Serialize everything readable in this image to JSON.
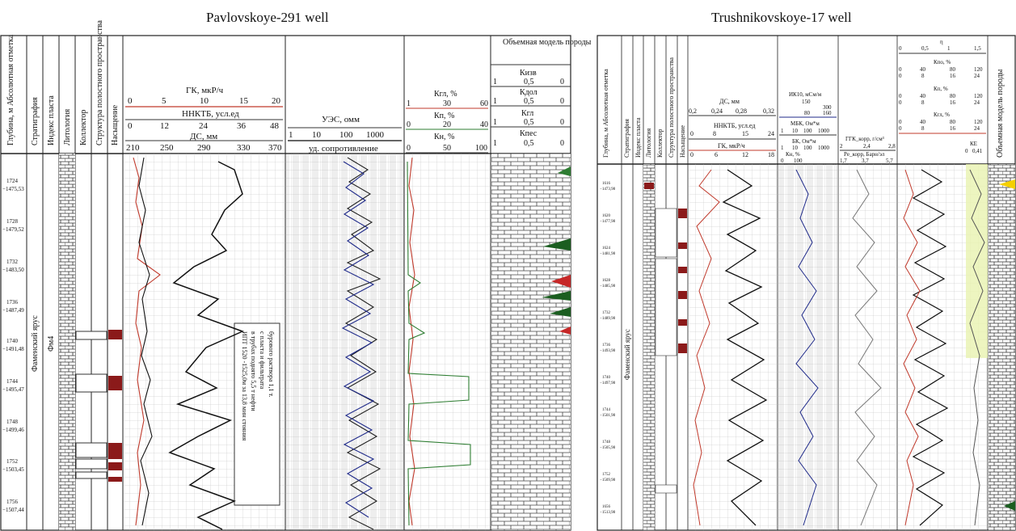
{
  "left": {
    "title": "Pavlovskoye-291 well",
    "vertical_headers": [
      "Глубина, м Абсолютная отметка",
      "Стратиграфия",
      "Индекс пласта",
      "Литология",
      "Коллектор",
      "Структура полостного пространства",
      "Насыщение"
    ],
    "gk": {
      "label": "ГК, мкР/ч",
      "ticks": [
        "0",
        "5",
        "10",
        "15",
        "20"
      ]
    },
    "nnktb": {
      "label": "ННКТБ, усл.ед",
      "ticks": [
        "0",
        "12",
        "24",
        "36",
        "48"
      ]
    },
    "ds": {
      "label": "ДС, мм",
      "ticks": [
        "210",
        "250",
        "290",
        "330",
        "370"
      ]
    },
    "ues": {
      "label": "УЭС, омм",
      "ticks": [
        "1",
        "10",
        "100",
        "1000"
      ],
      "footer": "уд. сопротивление"
    },
    "kgl": {
      "label": "Кгл, %",
      "ticks": [
        "1",
        "30",
        "60"
      ]
    },
    "kp": {
      "label": "Кп, %",
      "ticks": [
        "0",
        "20",
        "40"
      ]
    },
    "kn": {
      "label": "Кн, %",
      "ticks": [
        "0",
        "50",
        "100"
      ]
    },
    "volume_model": {
      "title": "Объемная модель породы",
      "rows": [
        {
          "label": "Кизв",
          "ticks": [
            "1",
            "0,5",
            "0"
          ]
        },
        {
          "label": "Кдол",
          "ticks": [
            "1",
            "0,5",
            "0"
          ]
        },
        {
          "label": "Кгл",
          "ticks": [
            "1",
            "0,5",
            "0"
          ]
        },
        {
          "label": "Кпес",
          "ticks": [
            "1",
            "0,5",
            "0"
          ]
        }
      ]
    },
    "depths": [
      {
        "d": "1724",
        "a": "−1475,53"
      },
      {
        "d": "1728",
        "a": "−1479,52"
      },
      {
        "d": "1732",
        "a": "−1483,50"
      },
      {
        "d": "1736",
        "a": "−1487,49"
      },
      {
        "d": "1740",
        "a": "−1491,48"
      },
      {
        "d": "1744",
        "a": "−1495,47"
      },
      {
        "d": "1748",
        "a": "−1499,46"
      },
      {
        "d": "1752",
        "a": "−1503,45"
      },
      {
        "d": "1756",
        "a": "−1507,44"
      }
    ],
    "strat": "Фаменский ярус",
    "index": "Фм4",
    "annotation": [
      "ИПТ 1520 -1525,0м за 13,8 мин стояния",
      "в трубах поднято 5,5 т нефти",
      "с пласта и фильтрата",
      "бурового раствора 1,1 т."
    ]
  },
  "right": {
    "title": "Trushnikovskoye-17 well",
    "vertical_headers": [
      "Глубина, м Абсолютная отметка",
      "Стратиграфия",
      "Индекс пласта",
      "Литология",
      "Коллектор",
      "Структура полостного пространства",
      "Насыщение"
    ],
    "ds": {
      "label": "ДС, мм",
      "ticks": [
        "0,2",
        "0,24",
        "0,28",
        "0,32"
      ]
    },
    "nnktb": {
      "label": "ННКТБ, усл.ед",
      "ticks": [
        "0",
        "8",
        "15",
        "24"
      ]
    },
    "gk": {
      "label": "ГК, мкР/ч",
      "ticks": [
        "0",
        "6",
        "12",
        "18"
      ]
    },
    "ik": {
      "label": "ИК10, мСм/м",
      "ticks": [
        "150",
        "300",
        "80",
        "160"
      ]
    },
    "mbk": {
      "label": "МБК, Ом*м",
      "ticks": [
        "1",
        "10",
        "100",
        "1000"
      ]
    },
    "bk": {
      "label": "БК, Ом*м",
      "ticks": [
        "1",
        "10",
        "100",
        "1000"
      ]
    },
    "kn": {
      "label": "Кн, %",
      "ticks": [
        "0",
        "100"
      ]
    },
    "ggk": {
      "label": "ГГК_корр, г/см³",
      "ticks": [
        "2",
        "2,4",
        "2,8"
      ]
    },
    "pe": {
      "label": "Pe_корр, Барн/эл",
      "ticks": [
        "1,7",
        "3,7",
        "5,7"
      ]
    },
    "eta": {
      "label": "η",
      "ticks": [
        "0",
        "0,5",
        "1",
        "1,5"
      ]
    },
    "kpo": {
      "label": "Кпо, %",
      "ticks": [
        "0",
        "40",
        "80",
        "120",
        "0",
        "8",
        "16",
        "24"
      ]
    },
    "kp": {
      "label": "Кп, %",
      "ticks": [
        "0",
        "40",
        "80",
        "120",
        "0",
        "8",
        "16",
        "24"
      ]
    },
    "kgl": {
      "label": "Кгл, %",
      "ticks": [
        "0",
        "40",
        "80",
        "120",
        "0",
        "8",
        "16",
        "24"
      ]
    },
    "ke": {
      "label": "КЕ",
      "ticks": [
        "0",
        "0,41"
      ]
    },
    "volume_model": "Объемная модель породы",
    "depths": [
      {
        "d": "1616",
        "a": "−1473,98"
      },
      {
        "d": "1620",
        "a": "−1477,98"
      },
      {
        "d": "1624",
        "a": "−1481,98"
      },
      {
        "d": "1628",
        "a": "−1485,98"
      },
      {
        "d": "1732",
        "a": "−1489,98"
      },
      {
        "d": "1736",
        "a": "−1493,98"
      },
      {
        "d": "1740",
        "a": "−1497,98"
      },
      {
        "d": "1744",
        "a": "−1501,98"
      },
      {
        "d": "1748",
        "a": "−1505,98"
      },
      {
        "d": "1752",
        "a": "−1509,98"
      },
      {
        "d": "1656",
        "a": "−1513,98"
      }
    ],
    "strat": "Фаменский ярус"
  }
}
